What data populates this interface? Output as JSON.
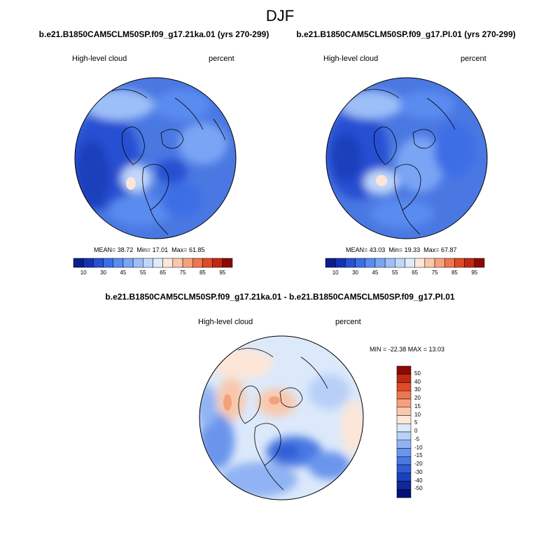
{
  "chart_data": {
    "type": "heatmap",
    "title": "DJF",
    "panels": [
      {
        "id": "ka21",
        "title": "b.e21.B1850CAM5CLM50SP.f09_g17.21ka.01 (yrs 270-299)",
        "left_label": "High-level cloud",
        "right_label": "percent",
        "stats": {
          "mean_label": "MEAN=",
          "mean": "38.72",
          "min_label": "Min=",
          "min": "17.01",
          "max_label": "Max=",
          "max": "61.85"
        },
        "colorbar_ticks": [
          "10",
          "30",
          "45",
          "55",
          "65",
          "75",
          "85",
          "95"
        ],
        "colorbar_levels": [
          5,
          10,
          20,
          30,
          35,
          40,
          45,
          50,
          55,
          60,
          65,
          70,
          75,
          80,
          85,
          90,
          95
        ]
      },
      {
        "id": "pi",
        "title": "b.e21.B1850CAM5CLM50SP.f09_g17.PI.01 (yrs 270-299)",
        "left_label": "High-level cloud",
        "right_label": "percent",
        "stats": {
          "mean_label": "MEAN=",
          "mean": "43.03",
          "min_label": "Min=",
          "min": "19.33",
          "max_label": "Max=",
          "max": "67.87"
        },
        "colorbar_ticks": [
          "10",
          "30",
          "45",
          "55",
          "65",
          "75",
          "85",
          "95"
        ],
        "colorbar_levels": [
          5,
          10,
          20,
          30,
          35,
          40,
          45,
          50,
          55,
          60,
          65,
          70,
          75,
          80,
          85,
          90,
          95
        ]
      },
      {
        "id": "diff",
        "title": "b.e21.B1850CAM5CLM50SP.f09_g17.21ka.01 - b.e21.B1850CAM5CLM50SP.f09_g17.PI.01",
        "left_label": "High-level cloud",
        "right_label": "percent",
        "stats_text": "MIN = -22.38 MAX =  13.03",
        "colorbar_ticks": [
          "50",
          "40",
          "30",
          "20",
          "15",
          "10",
          "5",
          "0",
          "-5",
          "-10",
          "-15",
          "-20",
          "-30",
          "-40",
          "-50"
        ],
        "colorbar_levels": [
          50,
          40,
          30,
          20,
          15,
          10,
          5,
          0,
          -5,
          -10,
          -15,
          -20,
          -30,
          -40,
          -50
        ]
      }
    ]
  },
  "colors": {
    "seq": [
      "#0a1e8c",
      "#1432b4",
      "#2850d2",
      "#3c6ee6",
      "#5a8cf0",
      "#7aa5f5",
      "#9dbff8",
      "#c0d7fa",
      "#e0ecfc",
      "#fce6d8",
      "#f9c8ac",
      "#f4a27e",
      "#ee7650",
      "#e04a28",
      "#c02814",
      "#8c0a05"
    ],
    "div": [
      "#8c0a05",
      "#c02814",
      "#e04a28",
      "#ee7650",
      "#f4a27e",
      "#f9c8ac",
      "#fce6d8",
      "#dce9fb",
      "#b8d0f8",
      "#90b3f3",
      "#6a95ec",
      "#4a78e2",
      "#2f5bd3",
      "#1a40bc",
      "#0d2898",
      "#050f78"
    ]
  }
}
